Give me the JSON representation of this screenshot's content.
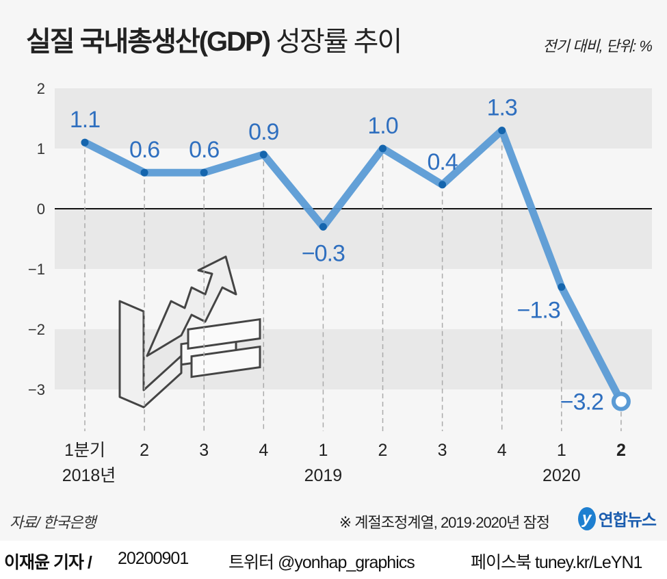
{
  "title_bold": "실질 국내총생산(GDP)",
  "title_light": "성장률 추이",
  "unit": "전기 대비, 단위: %",
  "source": "자료/ 한국은행",
  "note": "※ 계절조정계열, 2019·2020년 잠정",
  "logo": {
    "mark": "y",
    "text": "연합뉴스"
  },
  "footer": {
    "reporter": "이재윤 기자 /",
    "date": "20200901",
    "twitter": "트위터 @yonhap_graphics",
    "facebook": "페이스북 tuney.kr/LeYN1"
  },
  "colors": {
    "line": "#5b9bd5",
    "dot": "#1565ad",
    "label": "#2f6fbf",
    "band": "#e8e8e8",
    "bg": "#f6f6f6"
  },
  "chart_data": {
    "type": "line",
    "title": "실질 국내총생산(GDP) 성장률 추이",
    "ylabel": "%",
    "ylim": [
      -3,
      2
    ],
    "yticks": [
      "2",
      "1",
      "0",
      "−1",
      "−2",
      "−3"
    ],
    "yticks_values": [
      2,
      1,
      0,
      -1,
      -2,
      -3
    ],
    "categories": [
      "1분기",
      "2",
      "3",
      "4",
      "1",
      "2",
      "3",
      "4",
      "1",
      "2"
    ],
    "year_labels": [
      {
        "index": 0,
        "text": "2018년"
      },
      {
        "index": 4,
        "text": "2019"
      },
      {
        "index": 8,
        "text": "2020"
      }
    ],
    "values": [
      1.1,
      0.6,
      0.6,
      0.9,
      -0.3,
      1.0,
      0.4,
      1.3,
      -1.3,
      -3.2
    ],
    "data_labels": [
      "1.1",
      "0.6",
      "0.6",
      "0.9",
      "−0.3",
      "1.0",
      "0.4",
      "1.3",
      "−1.3",
      "−3.2"
    ],
    "highlight_last": true,
    "grid": "alternating bands"
  }
}
